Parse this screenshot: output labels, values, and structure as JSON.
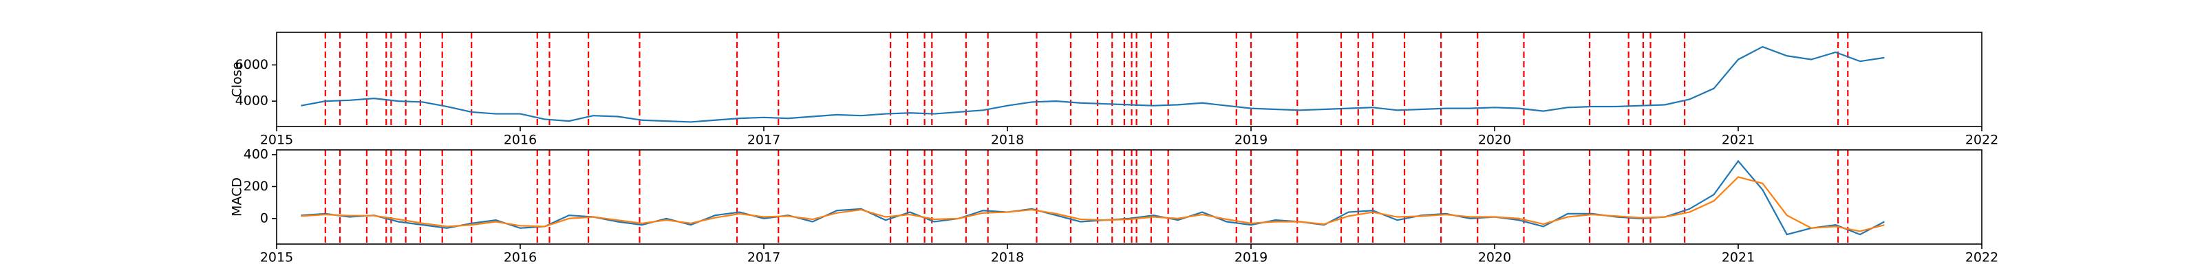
{
  "chart_data": [
    {
      "type": "line",
      "ylabel": "Close",
      "x": [
        2015.1,
        2015.2,
        2015.3,
        2015.4,
        2015.5,
        2015.6,
        2015.7,
        2015.8,
        2015.9,
        2016.0,
        2016.1,
        2016.2,
        2016.3,
        2016.4,
        2016.5,
        2016.6,
        2016.7,
        2016.8,
        2016.9,
        2017.0,
        2017.1,
        2017.2,
        2017.3,
        2017.4,
        2017.5,
        2017.6,
        2017.7,
        2017.8,
        2017.9,
        2018.0,
        2018.1,
        2018.2,
        2018.3,
        2018.4,
        2018.5,
        2018.6,
        2018.7,
        2018.8,
        2018.9,
        2019.0,
        2019.1,
        2019.2,
        2019.3,
        2019.4,
        2019.5,
        2019.6,
        2019.7,
        2019.8,
        2019.9,
        2020.0,
        2020.1,
        2020.2,
        2020.3,
        2020.4,
        2020.5,
        2020.6,
        2020.7,
        2020.8,
        2020.9,
        2021.0,
        2021.1,
        2021.2,
        2021.3,
        2021.4,
        2021.5,
        2021.6
      ],
      "series": [
        {
          "color": "#1f77b4",
          "values": [
            3750,
            4000,
            4050,
            4150,
            4000,
            3950,
            3700,
            3400,
            3300,
            3300,
            3000,
            2900,
            3200,
            3150,
            2950,
            2900,
            2850,
            2950,
            3050,
            3100,
            3050,
            3150,
            3250,
            3200,
            3300,
            3350,
            3300,
            3400,
            3500,
            3750,
            3950,
            4000,
            3900,
            3850,
            3800,
            3750,
            3800,
            3900,
            3750,
            3600,
            3550,
            3500,
            3550,
            3600,
            3650,
            3500,
            3550,
            3600,
            3600,
            3650,
            3600,
            3450,
            3650,
            3700,
            3700,
            3750,
            3800,
            4100,
            4700,
            6300,
            7000,
            6500,
            6300,
            6700,
            6200,
            6400
          ]
        }
      ],
      "xlim": [
        2015,
        2022
      ],
      "xticks": [
        2015,
        2016,
        2017,
        2018,
        2019,
        2020,
        2021,
        2022
      ],
      "ylim": [
        2600,
        7800
      ],
      "yticks": [
        4000,
        6000
      ],
      "vline_color": "#ff0000",
      "vlines": [
        2015.2,
        2015.26,
        2015.37,
        2015.45,
        2015.47,
        2015.53,
        2015.59,
        2015.68,
        2015.8,
        2016.07,
        2016.12,
        2016.28,
        2016.49,
        2016.89,
        2017.06,
        2017.52,
        2017.59,
        2017.66,
        2017.69,
        2017.83,
        2017.92,
        2018.12,
        2018.26,
        2018.37,
        2018.43,
        2018.48,
        2018.51,
        2018.53,
        2018.59,
        2018.66,
        2018.94,
        2019.0,
        2019.19,
        2019.37,
        2019.44,
        2019.5,
        2019.63,
        2019.78,
        2019.93,
        2020.12,
        2020.39,
        2020.55,
        2020.61,
        2020.64,
        2020.78,
        2021.41,
        2021.45
      ]
    },
    {
      "type": "line",
      "ylabel": "MACD",
      "x": [
        2015.1,
        2015.2,
        2015.3,
        2015.4,
        2015.5,
        2015.6,
        2015.7,
        2015.8,
        2015.9,
        2016.0,
        2016.1,
        2016.2,
        2016.3,
        2016.4,
        2016.5,
        2016.6,
        2016.7,
        2016.8,
        2016.9,
        2017.0,
        2017.1,
        2017.2,
        2017.3,
        2017.4,
        2017.5,
        2017.6,
        2017.7,
        2017.8,
        2017.9,
        2018.0,
        2018.1,
        2018.2,
        2018.3,
        2018.4,
        2018.5,
        2018.6,
        2018.7,
        2018.8,
        2018.9,
        2019.0,
        2019.1,
        2019.2,
        2019.3,
        2019.4,
        2019.5,
        2019.6,
        2019.7,
        2019.8,
        2019.9,
        2020.0,
        2020.1,
        2020.2,
        2020.3,
        2020.4,
        2020.5,
        2020.6,
        2020.7,
        2020.8,
        2020.9,
        2021.0,
        2021.1,
        2021.2,
        2021.3,
        2021.4,
        2021.5,
        2021.6
      ],
      "series": [
        {
          "color": "#1f77b4",
          "values": [
            20,
            30,
            10,
            20,
            -20,
            -40,
            -60,
            -30,
            -10,
            -60,
            -50,
            20,
            10,
            -20,
            -40,
            0,
            -40,
            20,
            40,
            0,
            20,
            -20,
            50,
            60,
            -10,
            40,
            -20,
            0,
            50,
            40,
            60,
            20,
            -20,
            -10,
            0,
            20,
            -10,
            40,
            -20,
            -40,
            -10,
            -20,
            -40,
            40,
            50,
            -10,
            20,
            30,
            0,
            10,
            -10,
            -50,
            30,
            30,
            10,
            0,
            10,
            60,
            150,
            360,
            180,
            -100,
            -60,
            -40,
            -100,
            -20
          ]
        },
        {
          "color": "#ff7f0e",
          "values": [
            15,
            25,
            18,
            18,
            -5,
            -30,
            -50,
            -40,
            -20,
            -45,
            -50,
            0,
            10,
            -10,
            -30,
            -10,
            -30,
            5,
            30,
            10,
            15,
            -5,
            35,
            55,
            10,
            25,
            -5,
            0,
            35,
            40,
            55,
            30,
            -5,
            -10,
            -5,
            10,
            0,
            25,
            -5,
            -30,
            -20,
            -20,
            -35,
            15,
            40,
            10,
            15,
            25,
            10,
            10,
            0,
            -35,
            10,
            25,
            15,
            5,
            10,
            40,
            110,
            260,
            220,
            20,
            -60,
            -50,
            -80,
            -40
          ]
        }
      ],
      "xlim": [
        2015,
        2022
      ],
      "xticks": [
        2015,
        2016,
        2017,
        2018,
        2019,
        2020,
        2021,
        2022
      ],
      "ylim": [
        -160,
        430
      ],
      "yticks": [
        0,
        200,
        400
      ]
    }
  ]
}
